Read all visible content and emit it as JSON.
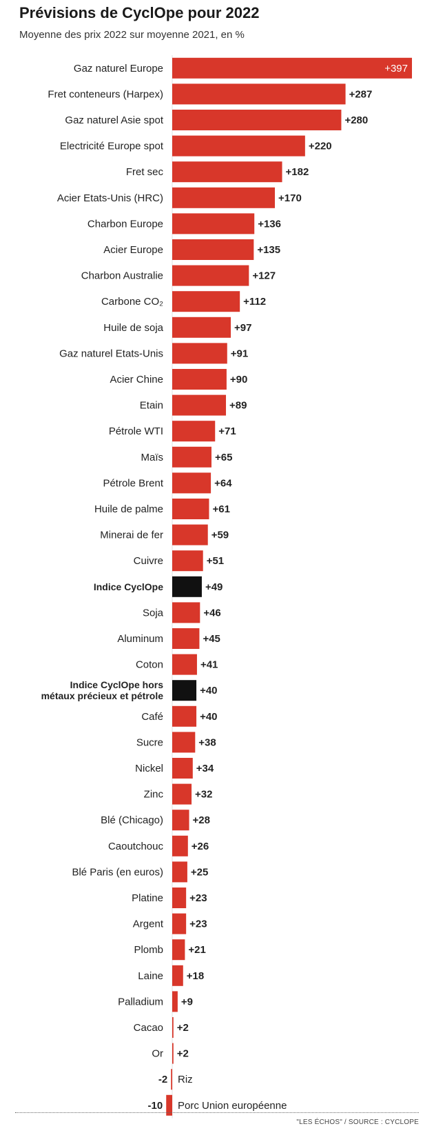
{
  "title": "Prévisions de CyclOpe pour 2022",
  "subtitle": "Moyenne des prix 2022 sur moyenne 2021, en %",
  "source": "\"LES ÉCHOS\" / SOURCE : CYCLOPE",
  "colors": {
    "bar": "#d8372a",
    "highlight": "#111111",
    "label": "#222222",
    "value_inside": "#ffffff"
  },
  "chart_data": {
    "type": "bar",
    "orientation": "horizontal",
    "title": "Prévisions de CyclOpe pour 2022",
    "subtitle": "Moyenne des prix 2022 sur moyenne 2021, en %",
    "categories": [
      "Gaz naturel Europe",
      "Fret conteneurs (Harpex)",
      "Gaz naturel Asie spot",
      "Electricité Europe spot",
      "Fret sec",
      "Acier Etats-Unis (HRC)",
      "Charbon Europe",
      "Acier Europe",
      "Charbon Australie",
      "Carbone CO₂",
      "Huile de soja",
      "Gaz naturel Etats-Unis",
      "Acier Chine",
      "Etain",
      "Pétrole WTI",
      "Maïs",
      "Pétrole Brent",
      "Huile de palme",
      "Minerai de fer",
      "Cuivre",
      "Indice CyclOpe",
      "Soja",
      "Aluminum",
      "Coton",
      "Indice CyclOpe hors\nmétaux précieux et pétrole",
      "Café",
      "Sucre",
      "Nickel",
      "Zinc",
      "Blé (Chicago)",
      "Caoutchouc",
      "Blé Paris (en euros)",
      "Platine",
      "Argent",
      "Plomb",
      "Laine",
      "Palladium",
      "Cacao",
      "Or",
      "Riz",
      "Porc Union européenne"
    ],
    "values": [
      397,
      287,
      280,
      220,
      182,
      170,
      136,
      135,
      127,
      112,
      97,
      91,
      90,
      89,
      71,
      65,
      64,
      61,
      59,
      51,
      49,
      46,
      45,
      41,
      40,
      40,
      38,
      34,
      32,
      28,
      26,
      25,
      23,
      23,
      21,
      18,
      9,
      2,
      2,
      -2,
      -10
    ],
    "value_labels": [
      "+397",
      "+287",
      "+280",
      "+220",
      "+182",
      "+170",
      "+136",
      "+135",
      "+127",
      "+112",
      "+97",
      "+91",
      "+90",
      "+89",
      "+71",
      "+65",
      "+64",
      "+61",
      "+59",
      "+51",
      "+49",
      "+46",
      "+45",
      "+41",
      "+40",
      "+40",
      "+38",
      "+34",
      "+32",
      "+28",
      "+26",
      "+25",
      "+23",
      "+23",
      "+21",
      "+18",
      "+9",
      "+2",
      "+2",
      "-2",
      "-10"
    ],
    "highlighted": [
      "Indice CyclOpe",
      "Indice CyclOpe hors\nmétaux précieux et pétrole"
    ],
    "xlim": [
      -10,
      397
    ]
  }
}
